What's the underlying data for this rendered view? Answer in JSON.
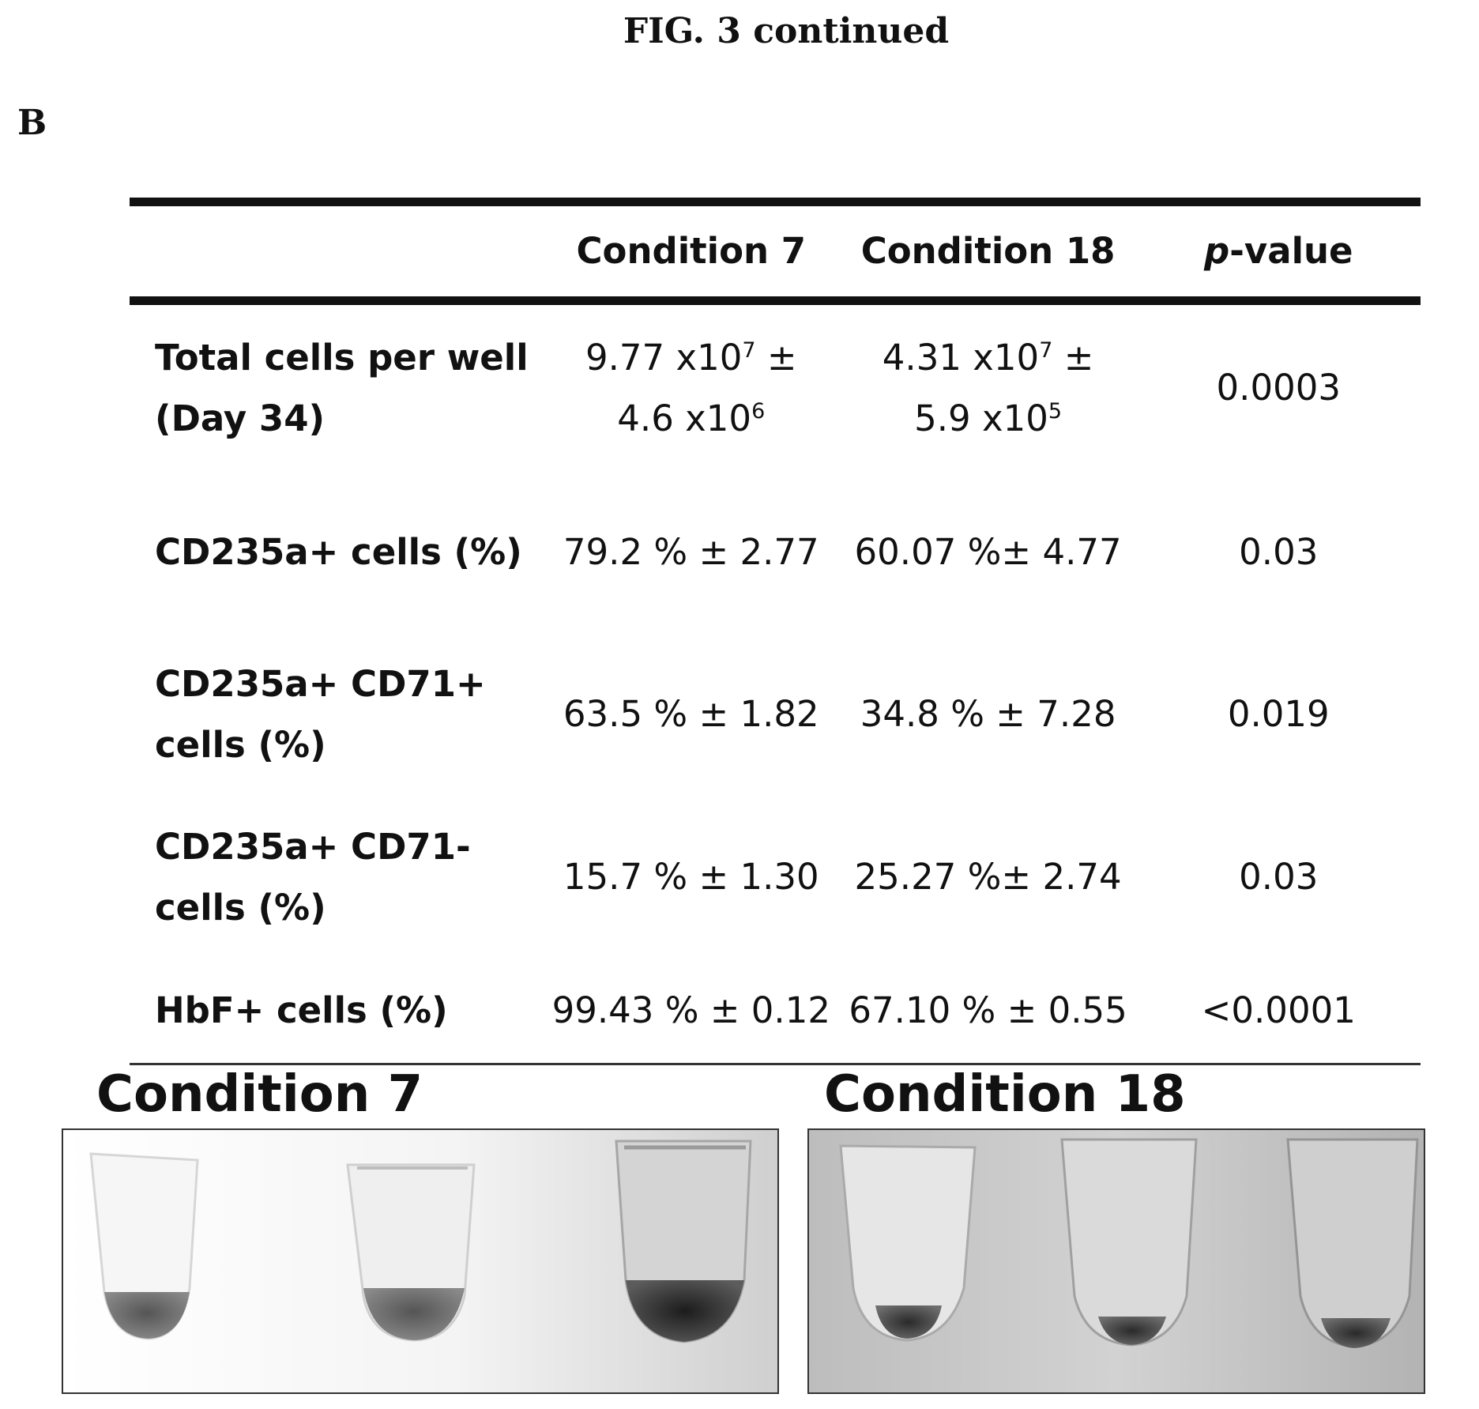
{
  "figure": {
    "title": "FIG. 3 continued",
    "panel": "B"
  },
  "table": {
    "header": {
      "blank": "",
      "col1": "Condition  7",
      "col2": "Condition  18",
      "p_italic": "p",
      "p_rest": "-value"
    },
    "rows": [
      {
        "label": "Total cells per well (Day 34)",
        "c7_line1": "9.77 x10",
        "c7_sup1": "7",
        "c7_tail1": " ±",
        "c7_line2": "4.6 x10",
        "c7_sup2": "6",
        "c18_line1": "4.31 x10",
        "c18_sup1": "7",
        "c18_tail1": " ±",
        "c18_line2": "5.9 x10",
        "c18_sup2": "5",
        "p": "0.0003"
      },
      {
        "label": "CD235a+ cells (%)",
        "c7": "79.2 % ± 2.77",
        "c18": "60.07 %± 4.77",
        "p": "0.03"
      },
      {
        "label": "CD235a+ CD71+ cells (%)",
        "c7": "63.5 % ± 1.82",
        "c18": "34.8 % ± 7.28",
        "p": "0.019"
      },
      {
        "label": "CD235a+ CD71- cells (%)",
        "c7": "15.7 % ± 1.30",
        "c18": "25.27 %± 2.74",
        "p": "0.03"
      },
      {
        "label": "HbF+ cells (%)",
        "c7": "99.43 % ± 0.12",
        "c18": "67.10 % ± 0.55",
        "p": "<0.0001"
      }
    ]
  },
  "photos": {
    "left_caption": "Condition 7",
    "right_caption": "Condition 18"
  }
}
